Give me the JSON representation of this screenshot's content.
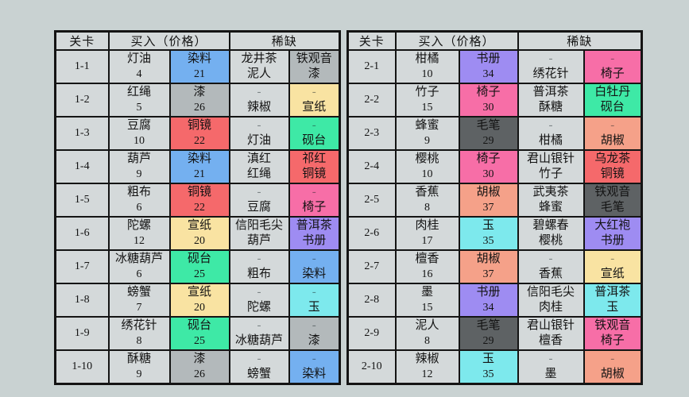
{
  "page": {
    "background": "#c9d2d2"
  },
  "palette": {
    "cell_bg": "#d4d9da",
    "border": "#141414",
    "text": "#131313",
    "goods_colors": {
      "dye": "#74b0f0",
      "lacquer": "#b3b9bb",
      "mirror": "#f5696b",
      "paper": "#f9e3a2",
      "inkstone": "#3ee9a6",
      "chair": "#f76ea7",
      "book": "#9e8cf2",
      "jade": "#7de9ed",
      "brush": "#5e6264",
      "pepper": "#f5a189"
    }
  },
  "tables": [
    {
      "name": "chapter-1",
      "headers": {
        "level": "关卡",
        "buy": "买入（价格）",
        "scarce": "稀缺"
      },
      "rows": [
        {
          "level": "1-1",
          "buy": {
            "name": "灯油",
            "price": "4"
          },
          "lux": {
            "name": "染料",
            "price": "21",
            "color": "dye"
          },
          "s1": {
            "a": "龙井茶",
            "b": "泥人"
          },
          "s2": {
            "a": "铁观音",
            "b": "漆",
            "color": "lacquer"
          }
        },
        {
          "level": "1-2",
          "buy": {
            "name": "红绳",
            "price": "5"
          },
          "lux": {
            "name": "漆",
            "price": "26",
            "color": "lacquer"
          },
          "s1": {
            "a": "-",
            "b": "辣椒"
          },
          "s2": {
            "a": "-",
            "b": "宣纸",
            "color": "paper"
          }
        },
        {
          "level": "1-3",
          "buy": {
            "name": "豆腐",
            "price": "10"
          },
          "lux": {
            "name": "铜镜",
            "price": "22",
            "color": "mirror"
          },
          "s1": {
            "a": "-",
            "b": "灯油"
          },
          "s2": {
            "a": "-",
            "b": "砚台",
            "color": "inkstone"
          }
        },
        {
          "level": "1-4",
          "buy": {
            "name": "葫芦",
            "price": "9"
          },
          "lux": {
            "name": "染料",
            "price": "21",
            "color": "dye"
          },
          "s1": {
            "a": "滇红",
            "b": "红绳"
          },
          "s2": {
            "a": "祁红",
            "b": "铜镜",
            "color": "mirror"
          }
        },
        {
          "level": "1-5",
          "buy": {
            "name": "粗布",
            "price": "6"
          },
          "lux": {
            "name": "铜镜",
            "price": "22",
            "color": "mirror"
          },
          "s1": {
            "a": "-",
            "b": "豆腐"
          },
          "s2": {
            "a": "-",
            "b": "椅子",
            "color": "chair"
          }
        },
        {
          "level": "1-6",
          "buy": {
            "name": "陀螺",
            "price": "12"
          },
          "lux": {
            "name": "宣纸",
            "price": "20",
            "color": "paper"
          },
          "s1": {
            "a": "信阳毛尖",
            "b": "葫芦"
          },
          "s2": {
            "a": "普洱茶",
            "b": "书册",
            "color": "book"
          }
        },
        {
          "level": "1-7",
          "buy": {
            "name": "冰糖葫芦",
            "price": "6"
          },
          "lux": {
            "name": "砚台",
            "price": "25",
            "color": "inkstone"
          },
          "s1": {
            "a": "-",
            "b": "粗布"
          },
          "s2": {
            "a": "-",
            "b": "染料",
            "color": "dye"
          }
        },
        {
          "level": "1-8",
          "buy": {
            "name": "螃蟹",
            "price": "7"
          },
          "lux": {
            "name": "宣纸",
            "price": "20",
            "color": "paper"
          },
          "s1": {
            "a": "-",
            "b": "陀螺"
          },
          "s2": {
            "a": "-",
            "b": "玉",
            "color": "jade"
          }
        },
        {
          "level": "1-9",
          "buy": {
            "name": "绣花针",
            "price": "8"
          },
          "lux": {
            "name": "砚台",
            "price": "25",
            "color": "inkstone"
          },
          "s1": {
            "a": "-",
            "b": "冰糖葫芦"
          },
          "s2": {
            "a": "-",
            "b": "漆",
            "color": "lacquer"
          }
        },
        {
          "level": "1-10",
          "buy": {
            "name": "酥糖",
            "price": "9"
          },
          "lux": {
            "name": "漆",
            "price": "26",
            "color": "lacquer"
          },
          "s1": {
            "a": "-",
            "b": "螃蟹"
          },
          "s2": {
            "a": "-",
            "b": "染料",
            "color": "dye"
          }
        }
      ]
    },
    {
      "name": "chapter-2",
      "headers": {
        "level": "关卡",
        "buy": "买入（价格）",
        "scarce": "稀缺"
      },
      "rows": [
        {
          "level": "2-1",
          "buy": {
            "name": "柑橘",
            "price": "10"
          },
          "lux": {
            "name": "书册",
            "price": "34",
            "color": "book"
          },
          "s1": {
            "a": "-",
            "b": "绣花针"
          },
          "s2": {
            "a": "-",
            "b": "椅子",
            "color": "chair"
          }
        },
        {
          "level": "2-2",
          "buy": {
            "name": "竹子",
            "price": "15"
          },
          "lux": {
            "name": "椅子",
            "price": "30",
            "color": "chair"
          },
          "s1": {
            "a": "普洱茶",
            "b": "酥糖"
          },
          "s2": {
            "a": "白牡丹",
            "b": "砚台",
            "color": "inkstone"
          }
        },
        {
          "level": "2-3",
          "buy": {
            "name": "蜂蜜",
            "price": "9"
          },
          "lux": {
            "name": "毛笔",
            "price": "29",
            "color": "brush"
          },
          "s1": {
            "a": "-",
            "b": "柑橘"
          },
          "s2": {
            "a": "-",
            "b": "胡椒",
            "color": "pepper"
          }
        },
        {
          "level": "2-4",
          "buy": {
            "name": "樱桃",
            "price": "10"
          },
          "lux": {
            "name": "椅子",
            "price": "30",
            "color": "chair"
          },
          "s1": {
            "a": "君山银针",
            "b": "竹子"
          },
          "s2": {
            "a": "乌龙茶",
            "b": "铜镜",
            "color": "mirror"
          }
        },
        {
          "level": "2-5",
          "buy": {
            "name": "香蕉",
            "price": "8"
          },
          "lux": {
            "name": "胡椒",
            "price": "37",
            "color": "pepper"
          },
          "s1": {
            "a": "武夷茶",
            "b": "蜂蜜"
          },
          "s2": {
            "a": "铁观音",
            "b": "毛笔",
            "color": "brush"
          }
        },
        {
          "level": "2-6",
          "buy": {
            "name": "肉桂",
            "price": "17"
          },
          "lux": {
            "name": "玉",
            "price": "35",
            "color": "jade"
          },
          "s1": {
            "a": "碧螺春",
            "b": "樱桃"
          },
          "s2": {
            "a": "大红袍",
            "b": "书册",
            "color": "book"
          }
        },
        {
          "level": "2-7",
          "buy": {
            "name": "檀香",
            "price": "16"
          },
          "lux": {
            "name": "胡椒",
            "price": "37",
            "color": "pepper"
          },
          "s1": {
            "a": "-",
            "b": "香蕉"
          },
          "s2": {
            "a": "-",
            "b": "宣纸",
            "color": "paper"
          }
        },
        {
          "level": "2-8",
          "buy": {
            "name": "墨",
            "price": "15"
          },
          "lux": {
            "name": "书册",
            "price": "34",
            "color": "book"
          },
          "s1": {
            "a": "信阳毛尖",
            "b": "肉桂"
          },
          "s2": {
            "a": "普洱茶",
            "b": "玉",
            "color": "jade"
          }
        },
        {
          "level": "2-9",
          "buy": {
            "name": "泥人",
            "price": "8"
          },
          "lux": {
            "name": "毛笔",
            "price": "29",
            "color": "brush"
          },
          "s1": {
            "a": "君山银针",
            "b": "檀香"
          },
          "s2": {
            "a": "铁观音",
            "b": "椅子",
            "color": "chair"
          }
        },
        {
          "level": "2-10",
          "buy": {
            "name": "辣椒",
            "price": "12"
          },
          "lux": {
            "name": "玉",
            "price": "35",
            "color": "jade"
          },
          "s1": {
            "a": "-",
            "b": "墨"
          },
          "s2": {
            "a": "-",
            "b": "胡椒",
            "color": "pepper"
          }
        }
      ]
    }
  ]
}
